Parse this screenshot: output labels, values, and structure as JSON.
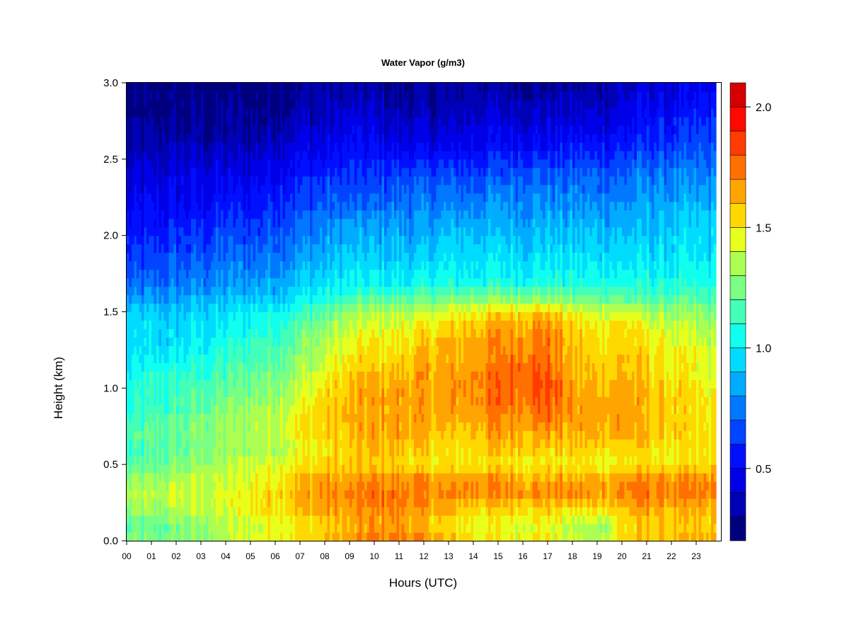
{
  "chart_data": {
    "type": "heatmap",
    "title": "Water Vapor (g/m3)",
    "xlabel": "Hours (UTC)",
    "ylabel": "Height (km)",
    "xlim": [
      0,
      24
    ],
    "ylim": [
      0.0,
      3.0
    ],
    "x_ticks": [
      "00",
      "01",
      "02",
      "03",
      "04",
      "05",
      "06",
      "07",
      "08",
      "09",
      "10",
      "11",
      "12",
      "13",
      "14",
      "15",
      "16",
      "17",
      "18",
      "19",
      "20",
      "21",
      "22",
      "23"
    ],
    "y_ticks": [
      "0.0",
      "0.5",
      "1.0",
      "1.5",
      "2.0",
      "2.5",
      "3.0"
    ],
    "y_tick_values": [
      0.0,
      0.5,
      1.0,
      1.5,
      2.0,
      2.5,
      3.0
    ],
    "colorbar": {
      "levels": [
        0.2,
        0.3,
        0.4,
        0.5,
        0.6,
        0.7,
        0.8,
        0.9,
        1.0,
        1.1,
        1.2,
        1.3,
        1.4,
        1.5,
        1.6,
        1.7,
        1.8,
        1.9,
        2.0,
        2.1
      ],
      "colors": [
        "#00007f",
        "#0000b4",
        "#0000e8",
        "#0010ff",
        "#0044ff",
        "#0078ff",
        "#00acff",
        "#00dcff",
        "#10ffee",
        "#44ffb8",
        "#78ff84",
        "#acff50",
        "#e8ff1c",
        "#ffd800",
        "#ffa400",
        "#ff7000",
        "#ff3c00",
        "#ff0800",
        "#d40000",
        "#7f0000"
      ],
      "ticks": [
        "0.5",
        "1.0",
        "1.5",
        "2.0"
      ],
      "tick_values": [
        0.5,
        1.0,
        1.5,
        2.0
      ]
    },
    "hours": [
      0,
      1,
      2,
      3,
      4,
      5,
      6,
      7,
      8,
      9,
      10,
      11,
      12,
      13,
      14,
      15,
      16,
      17,
      18,
      19,
      20,
      21,
      22,
      23,
      23.8
    ],
    "heights_km": [
      0.0,
      0.1,
      0.2,
      0.3,
      0.4,
      0.5,
      0.6,
      0.7,
      0.8,
      0.9,
      1.0,
      1.1,
      1.2,
      1.3,
      1.4,
      1.5,
      1.6,
      1.7,
      1.8,
      1.9,
      2.0,
      2.1,
      2.2,
      2.3,
      2.4,
      2.5,
      2.6,
      2.7,
      2.8,
      2.9,
      3.0
    ],
    "values_by_height": [
      [
        1.25,
        1.25,
        1.25,
        1.3,
        1.35,
        1.45,
        1.5,
        1.55,
        1.6,
        1.65,
        1.75,
        1.75,
        1.7,
        1.6,
        1.55,
        1.5,
        1.5,
        1.5,
        1.4,
        1.35,
        1.55,
        1.6,
        1.6,
        1.6,
        1.6
      ],
      [
        1.15,
        1.2,
        1.25,
        1.3,
        1.35,
        1.4,
        1.45,
        1.5,
        1.55,
        1.6,
        1.65,
        1.65,
        1.6,
        1.5,
        1.45,
        1.45,
        1.45,
        1.45,
        1.35,
        1.3,
        1.5,
        1.55,
        1.55,
        1.55,
        1.55
      ],
      [
        1.3,
        1.3,
        1.35,
        1.4,
        1.4,
        1.5,
        1.55,
        1.6,
        1.65,
        1.65,
        1.7,
        1.7,
        1.65,
        1.6,
        1.55,
        1.55,
        1.55,
        1.55,
        1.5,
        1.5,
        1.6,
        1.65,
        1.6,
        1.6,
        1.6
      ],
      [
        1.35,
        1.35,
        1.4,
        1.4,
        1.45,
        1.5,
        1.55,
        1.65,
        1.7,
        1.7,
        1.75,
        1.75,
        1.7,
        1.7,
        1.7,
        1.7,
        1.7,
        1.7,
        1.7,
        1.65,
        1.7,
        1.75,
        1.7,
        1.7,
        1.7
      ],
      [
        1.3,
        1.3,
        1.35,
        1.4,
        1.4,
        1.45,
        1.5,
        1.6,
        1.65,
        1.65,
        1.7,
        1.7,
        1.7,
        1.65,
        1.7,
        1.7,
        1.65,
        1.65,
        1.65,
        1.65,
        1.7,
        1.7,
        1.7,
        1.7,
        1.7
      ],
      [
        1.15,
        1.2,
        1.25,
        1.3,
        1.35,
        1.4,
        1.45,
        1.5,
        1.55,
        1.55,
        1.55,
        1.55,
        1.5,
        1.5,
        1.5,
        1.5,
        1.5,
        1.5,
        1.5,
        1.45,
        1.5,
        1.5,
        1.5,
        1.5,
        1.5
      ],
      [
        1.1,
        1.15,
        1.2,
        1.25,
        1.3,
        1.35,
        1.35,
        1.45,
        1.5,
        1.55,
        1.6,
        1.6,
        1.55,
        1.5,
        1.55,
        1.6,
        1.6,
        1.55,
        1.55,
        1.55,
        1.55,
        1.55,
        1.5,
        1.5,
        1.5
      ],
      [
        1.15,
        1.2,
        1.2,
        1.25,
        1.3,
        1.35,
        1.4,
        1.5,
        1.55,
        1.6,
        1.65,
        1.65,
        1.6,
        1.55,
        1.6,
        1.65,
        1.65,
        1.65,
        1.6,
        1.65,
        1.65,
        1.6,
        1.55,
        1.5,
        1.5
      ],
      [
        1.1,
        1.15,
        1.2,
        1.25,
        1.3,
        1.35,
        1.4,
        1.5,
        1.55,
        1.6,
        1.65,
        1.65,
        1.65,
        1.6,
        1.65,
        1.7,
        1.7,
        1.75,
        1.65,
        1.65,
        1.65,
        1.6,
        1.55,
        1.5,
        1.5
      ],
      [
        1.05,
        1.1,
        1.15,
        1.2,
        1.25,
        1.3,
        1.35,
        1.45,
        1.55,
        1.6,
        1.65,
        1.65,
        1.65,
        1.65,
        1.7,
        1.75,
        1.75,
        1.8,
        1.65,
        1.65,
        1.65,
        1.6,
        1.55,
        1.5,
        1.5
      ],
      [
        1.05,
        1.1,
        1.15,
        1.15,
        1.2,
        1.25,
        1.3,
        1.4,
        1.5,
        1.6,
        1.65,
        1.65,
        1.65,
        1.65,
        1.7,
        1.75,
        1.8,
        1.85,
        1.65,
        1.6,
        1.65,
        1.6,
        1.55,
        1.5,
        1.45
      ],
      [
        1.0,
        1.05,
        1.1,
        1.1,
        1.15,
        1.2,
        1.25,
        1.35,
        1.45,
        1.55,
        1.6,
        1.6,
        1.65,
        1.65,
        1.7,
        1.75,
        1.8,
        1.8,
        1.6,
        1.6,
        1.6,
        1.55,
        1.5,
        1.45,
        1.4
      ],
      [
        0.95,
        1.0,
        1.0,
        1.05,
        1.1,
        1.15,
        1.2,
        1.3,
        1.4,
        1.5,
        1.55,
        1.55,
        1.6,
        1.6,
        1.65,
        1.7,
        1.75,
        1.75,
        1.6,
        1.55,
        1.6,
        1.55,
        1.5,
        1.45,
        1.4
      ],
      [
        0.95,
        0.95,
        0.95,
        1.0,
        1.05,
        1.1,
        1.15,
        1.25,
        1.35,
        1.45,
        1.5,
        1.5,
        1.55,
        1.6,
        1.65,
        1.7,
        1.7,
        1.75,
        1.55,
        1.55,
        1.55,
        1.5,
        1.45,
        1.4,
        1.35
      ],
      [
        0.95,
        0.95,
        0.95,
        1.0,
        1.0,
        1.05,
        1.1,
        1.2,
        1.3,
        1.4,
        1.45,
        1.45,
        1.5,
        1.55,
        1.6,
        1.65,
        1.65,
        1.7,
        1.55,
        1.5,
        1.55,
        1.45,
        1.4,
        1.35,
        1.3
      ],
      [
        0.9,
        0.9,
        0.9,
        0.95,
        0.95,
        1.0,
        1.05,
        1.1,
        1.2,
        1.3,
        1.35,
        1.35,
        1.4,
        1.45,
        1.5,
        1.55,
        1.55,
        1.6,
        1.45,
        1.4,
        1.45,
        1.35,
        1.3,
        1.3,
        1.25
      ],
      [
        0.8,
        0.8,
        0.8,
        0.85,
        0.85,
        0.9,
        0.9,
        1.0,
        1.05,
        1.1,
        1.15,
        1.15,
        1.2,
        1.2,
        1.25,
        1.25,
        1.25,
        1.25,
        1.2,
        1.2,
        1.2,
        1.15,
        1.15,
        1.15,
        1.1
      ],
      [
        0.7,
        0.7,
        0.75,
        0.75,
        0.8,
        0.8,
        0.85,
        0.9,
        0.95,
        1.0,
        1.0,
        1.0,
        1.05,
        1.05,
        1.05,
        1.05,
        1.05,
        1.05,
        1.05,
        1.05,
        1.05,
        1.05,
        1.05,
        1.05,
        1.05
      ],
      [
        0.65,
        0.65,
        0.7,
        0.7,
        0.75,
        0.75,
        0.8,
        0.85,
        0.9,
        0.95,
        0.95,
        0.95,
        0.95,
        1.0,
        1.0,
        1.0,
        1.0,
        1.0,
        1.0,
        1.0,
        1.0,
        1.0,
        1.0,
        1.0,
        1.0
      ],
      [
        0.6,
        0.6,
        0.65,
        0.65,
        0.7,
        0.7,
        0.75,
        0.8,
        0.85,
        0.9,
        0.9,
        0.9,
        0.9,
        0.95,
        0.95,
        0.95,
        0.95,
        0.95,
        0.95,
        0.95,
        0.95,
        0.95,
        0.95,
        0.95,
        0.95
      ],
      [
        0.55,
        0.55,
        0.6,
        0.6,
        0.65,
        0.65,
        0.7,
        0.75,
        0.8,
        0.85,
        0.85,
        0.85,
        0.85,
        0.9,
        0.9,
        0.9,
        0.9,
        0.9,
        0.9,
        0.9,
        0.9,
        0.9,
        0.95,
        0.95,
        0.95
      ],
      [
        0.5,
        0.5,
        0.55,
        0.55,
        0.6,
        0.6,
        0.65,
        0.7,
        0.75,
        0.8,
        0.8,
        0.8,
        0.8,
        0.85,
        0.85,
        0.85,
        0.85,
        0.85,
        0.85,
        0.85,
        0.85,
        0.85,
        0.9,
        0.9,
        0.9
      ],
      [
        0.45,
        0.5,
        0.5,
        0.5,
        0.55,
        0.55,
        0.6,
        0.65,
        0.7,
        0.7,
        0.7,
        0.75,
        0.75,
        0.75,
        0.8,
        0.8,
        0.8,
        0.8,
        0.8,
        0.8,
        0.8,
        0.85,
        0.85,
        0.85,
        0.85
      ],
      [
        0.45,
        0.45,
        0.45,
        0.5,
        0.5,
        0.5,
        0.55,
        0.6,
        0.65,
        0.65,
        0.65,
        0.7,
        0.7,
        0.7,
        0.7,
        0.75,
        0.75,
        0.75,
        0.75,
        0.75,
        0.75,
        0.8,
        0.8,
        0.8,
        0.8
      ],
      [
        0.4,
        0.4,
        0.45,
        0.45,
        0.45,
        0.45,
        0.5,
        0.55,
        0.6,
        0.6,
        0.6,
        0.65,
        0.65,
        0.65,
        0.65,
        0.65,
        0.7,
        0.7,
        0.7,
        0.7,
        0.7,
        0.75,
        0.75,
        0.75,
        0.75
      ],
      [
        0.35,
        0.35,
        0.4,
        0.4,
        0.4,
        0.4,
        0.45,
        0.5,
        0.5,
        0.55,
        0.55,
        0.55,
        0.55,
        0.55,
        0.55,
        0.6,
        0.6,
        0.6,
        0.6,
        0.6,
        0.65,
        0.65,
        0.7,
        0.7,
        0.7
      ],
      [
        0.3,
        0.35,
        0.35,
        0.35,
        0.35,
        0.35,
        0.4,
        0.45,
        0.45,
        0.5,
        0.5,
        0.45,
        0.45,
        0.45,
        0.5,
        0.5,
        0.5,
        0.5,
        0.55,
        0.55,
        0.55,
        0.6,
        0.6,
        0.65,
        0.65
      ],
      [
        0.3,
        0.3,
        0.3,
        0.3,
        0.3,
        0.3,
        0.35,
        0.4,
        0.4,
        0.45,
        0.45,
        0.4,
        0.4,
        0.4,
        0.45,
        0.45,
        0.45,
        0.45,
        0.45,
        0.45,
        0.5,
        0.55,
        0.55,
        0.6,
        0.6
      ],
      [
        0.25,
        0.25,
        0.25,
        0.3,
        0.3,
        0.3,
        0.3,
        0.35,
        0.35,
        0.4,
        0.4,
        0.35,
        0.35,
        0.35,
        0.4,
        0.4,
        0.4,
        0.4,
        0.4,
        0.4,
        0.45,
        0.5,
        0.5,
        0.55,
        0.55
      ],
      [
        0.25,
        0.25,
        0.25,
        0.25,
        0.25,
        0.25,
        0.3,
        0.3,
        0.35,
        0.35,
        0.35,
        0.3,
        0.3,
        0.3,
        0.35,
        0.35,
        0.35,
        0.35,
        0.35,
        0.35,
        0.4,
        0.45,
        0.45,
        0.5,
        0.5
      ],
      [
        0.25,
        0.25,
        0.25,
        0.25,
        0.25,
        0.25,
        0.25,
        0.3,
        0.3,
        0.3,
        0.3,
        0.3,
        0.3,
        0.3,
        0.3,
        0.3,
        0.3,
        0.3,
        0.3,
        0.35,
        0.35,
        0.4,
        0.4,
        0.45,
        0.45
      ]
    ]
  }
}
